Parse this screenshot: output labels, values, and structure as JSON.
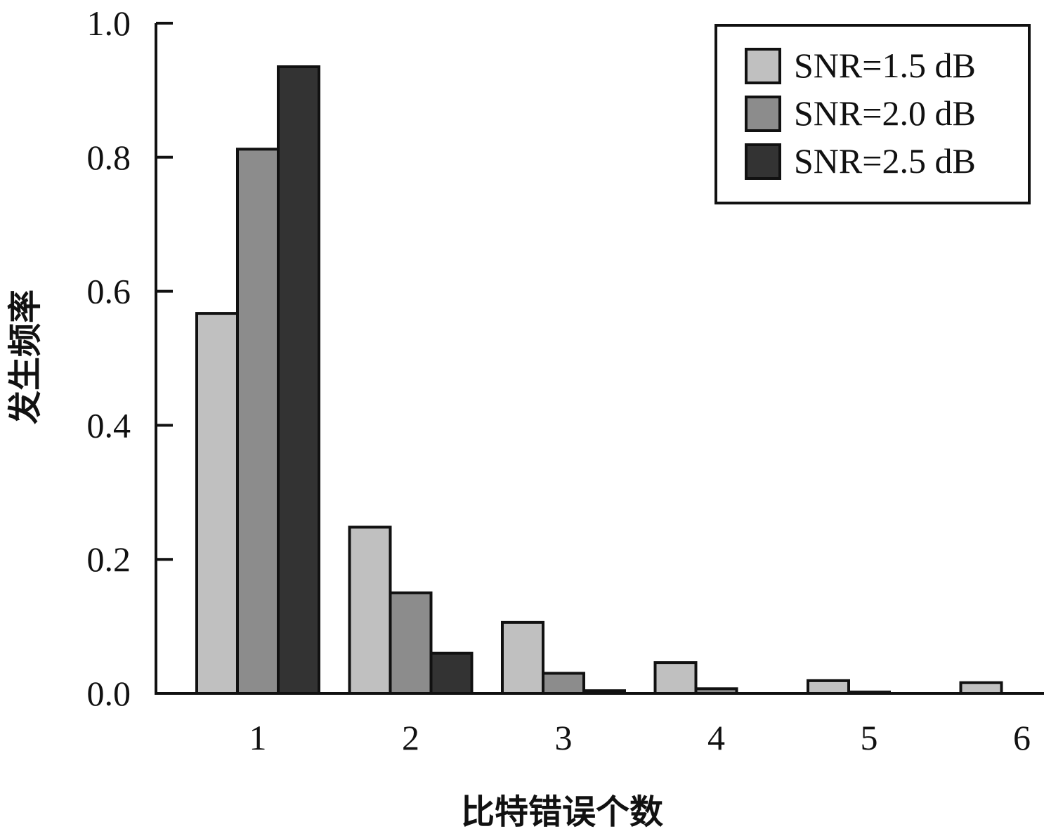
{
  "chart_data": {
    "type": "bar",
    "title": "",
    "xlabel": "比特错误个数",
    "ylabel": "发生频率",
    "categories": [
      "1",
      "2",
      "3",
      "4",
      "5",
      "6"
    ],
    "series": [
      {
        "name": "SNR=1.5 dB",
        "color": "#c0c0c0",
        "values": [
          0.567,
          0.248,
          0.106,
          0.046,
          0.019,
          0.016
        ]
      },
      {
        "name": "SNR=2.0 dB",
        "color": "#8c8c8c",
        "values": [
          0.812,
          0.15,
          0.03,
          0.007,
          0.002,
          0.0
        ]
      },
      {
        "name": "SNR=2.5 dB",
        "color": "#333333",
        "values": [
          0.935,
          0.06,
          0.004,
          0.0005,
          0.0,
          0.0
        ]
      }
    ],
    "ylim": [
      0,
      1.0
    ],
    "yticks": [
      "0.0",
      "0.2",
      "0.4",
      "0.6",
      "0.8",
      "1.0"
    ],
    "grid": false,
    "legend_position": "top-right"
  }
}
